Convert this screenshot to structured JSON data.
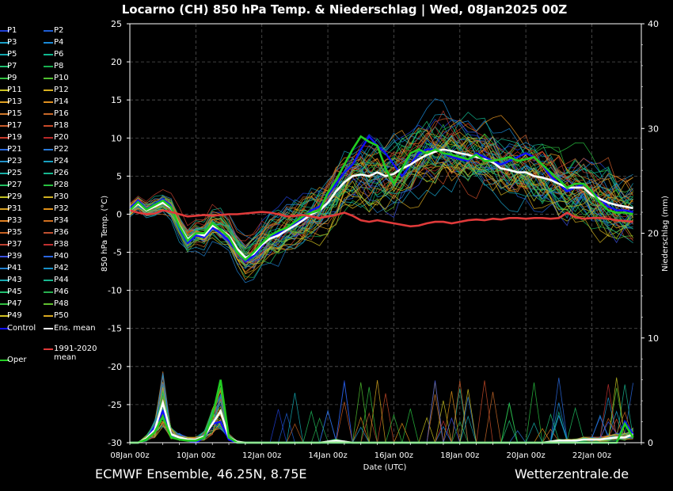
{
  "title": "Locarno  (CH)  850 hPa Temp. & Niederschlag | Wed, 08Jan2025 00Z",
  "footer_left": "ECMWF Ensemble, 46.25N, 8.75E",
  "footer_right": "Wetterzentrale.de",
  "legend": {
    "members": [
      "P1",
      "P2",
      "P3",
      "P4",
      "P5",
      "P6",
      "P7",
      "P8",
      "P9",
      "P10",
      "P11",
      "P12",
      "P13",
      "P14",
      "P15",
      "P16",
      "P17",
      "P18",
      "P19",
      "P20",
      "P21",
      "P22",
      "P23",
      "P24",
      "P25",
      "P26",
      "P27",
      "P28",
      "P29",
      "P30",
      "P31",
      "P32",
      "P33",
      "P34",
      "P35",
      "P36",
      "P37",
      "P38",
      "P39",
      "P40",
      "P41",
      "P42",
      "P43",
      "P44",
      "P45",
      "P46",
      "P47",
      "P48",
      "P49",
      "P50"
    ],
    "member_colors": [
      "#1f3fd6",
      "#1f5fd6",
      "#19a0c8",
      "#1a8ad8",
      "#12a8b0",
      "#10b890",
      "#20c070",
      "#18b050",
      "#30c040",
      "#50c030",
      "#c8c020",
      "#d8b020",
      "#e0a020",
      "#e09020",
      "#d07828",
      "#c86828",
      "#c85a28",
      "#c84a28",
      "#c83828",
      "#b82828",
      "#2a6ae0",
      "#2a7ad8",
      "#2090c8",
      "#18a0c0",
      "#18b0a8",
      "#18b890",
      "#20c060",
      "#28c040",
      "#c0c020",
      "#d0b020",
      "#d8a020",
      "#e09018",
      "#e08020",
      "#d07020",
      "#c86020",
      "#c05030",
      "#c04030",
      "#c03030",
      "#3a50e0",
      "#2a66e0",
      "#2080d0",
      "#1890c8",
      "#18a8b0",
      "#18b890",
      "#20c070",
      "#28b050",
      "#30c040",
      "#60c030",
      "#d0c020",
      "#d8a820"
    ],
    "control": "Control",
    "ens_mean": "Ens. mean",
    "clim_mean": "1991-2020\nmean",
    "oper": "Oper"
  },
  "colors": {
    "control": "#1010ff",
    "ens_mean": "#ffffff",
    "clim_mean": "#e03a3a",
    "oper": "#22cc22",
    "grid": "#555555"
  },
  "chart_data": {
    "type": "line",
    "xlabel": "Date (UTC)",
    "ylabel": "850 hPa Temp. (°C)",
    "ylabel_right": "Niederschlag (mm)",
    "x_range": [
      "2025-01-08T00:00",
      "2025-01-23T12:00"
    ],
    "x_ticks": [
      "08Jan 00z",
      "10Jan 00z",
      "12Jan 00z",
      "14Jan 00z",
      "16Jan 00z",
      "18Jan 00z",
      "20Jan 00z",
      "22Jan 00z"
    ],
    "ylim": [
      -30,
      25
    ],
    "y_ticks": [
      25,
      20,
      15,
      10,
      5,
      0,
      -5,
      -10,
      -15,
      -20,
      -25,
      -30
    ],
    "ylim_right": [
      0,
      40
    ],
    "y_ticks_right": [
      40,
      30,
      20,
      10,
      0
    ],
    "grid": true,
    "legend_placement": "left",
    "time_step_hours": 6,
    "series": [
      {
        "name": "Ens. mean",
        "kind": "temperature",
        "values": [
          0.5,
          1.4,
          0.5,
          1.0,
          1.5,
          0.8,
          -1.5,
          -3.3,
          -2.5,
          -2.8,
          -1.5,
          -2.0,
          -2.8,
          -4.5,
          -5.7,
          -5.2,
          -4.0,
          -3.2,
          -2.8,
          -2.1,
          -1.5,
          -0.8,
          0.0,
          0.5,
          1.5,
          3.0,
          4.2,
          5.0,
          5.2,
          5.0,
          5.5,
          5.0,
          5.3,
          6.0,
          6.5,
          7.2,
          7.8,
          8.2,
          8.5,
          8.3,
          8.0,
          7.8,
          7.5,
          7.2,
          6.8,
          6.0,
          5.8,
          5.5,
          5.5,
          5.0,
          4.8,
          4.5,
          4.0,
          3.5,
          3.5,
          3.5,
          2.5,
          2.0,
          1.5,
          1.2,
          1.0,
          0.8
        ]
      },
      {
        "name": "Control",
        "kind": "temperature",
        "values": [
          0.8,
          1.8,
          0.7,
          1.3,
          2.0,
          1.0,
          -1.8,
          -3.8,
          -2.8,
          -3.0,
          -1.8,
          -2.5,
          -3.5,
          -5.0,
          -6.2,
          -5.5,
          -4.2,
          -3.0,
          -2.5,
          -2.0,
          -1.2,
          -0.5,
          0.5,
          1.0,
          2.5,
          4.0,
          5.5,
          6.5,
          8.5,
          10.2,
          9.0,
          8.0,
          6.5,
          5.0,
          6.5,
          8.0,
          8.5,
          8.5,
          8.0,
          7.5,
          7.2,
          7.0,
          8.0,
          7.5,
          7.0,
          6.5,
          7.0,
          7.5,
          8.0,
          7.5,
          6.5,
          5.0,
          4.0,
          3.0,
          3.5,
          4.0,
          3.0,
          2.0,
          1.0,
          0.5,
          0.5,
          0.3
        ]
      },
      {
        "name": "Oper",
        "kind": "temperature",
        "values": [
          0.5,
          1.6,
          0.6,
          1.2,
          1.8,
          0.9,
          -1.6,
          -3.5,
          -2.5,
          -2.5,
          -1.2,
          -2.0,
          -3.0,
          -5.0,
          -6.0,
          -5.0,
          -3.8,
          -2.8,
          -2.2,
          -1.8,
          -1.0,
          -0.3,
          0.2,
          0.5,
          2.8,
          4.5,
          6.5,
          8.5,
          10.2,
          9.5,
          9.0,
          6.0,
          4.0,
          6.0,
          8.0,
          8.5,
          8.0,
          8.5,
          8.0,
          7.8,
          7.5,
          7.2,
          7.8,
          7.0,
          7.0,
          7.2,
          7.5,
          7.0,
          7.2,
          7.5,
          6.5,
          5.5,
          4.5,
          3.5,
          4.0,
          4.0,
          3.0,
          1.5,
          0.5,
          0.2,
          0.2,
          0.0
        ]
      },
      {
        "name": "1991-2020 mean",
        "kind": "temperature",
        "values": [
          0.5,
          0.2,
          0.0,
          0.1,
          0.5,
          0.3,
          0.0,
          -0.3,
          -0.2,
          -0.1,
          -0.2,
          -0.1,
          0.0,
          0.0,
          0.1,
          0.2,
          0.3,
          0.2,
          0.0,
          -0.3,
          -0.2,
          -0.1,
          -0.3,
          -0.5,
          -0.3,
          -0.1,
          0.2,
          -0.2,
          -0.8,
          -1.0,
          -0.8,
          -1.0,
          -1.2,
          -1.4,
          -1.6,
          -1.5,
          -1.2,
          -1.0,
          -1.0,
          -1.2,
          -1.0,
          -0.8,
          -0.7,
          -0.8,
          -0.6,
          -0.7,
          -0.5,
          -0.5,
          -0.6,
          -0.5,
          -0.5,
          -0.6,
          -0.5,
          0.2,
          -0.4,
          -0.6,
          -0.5,
          -0.5,
          -0.6,
          -0.8,
          -0.9,
          -1.0
        ]
      },
      {
        "name": "Control",
        "kind": "precipitation",
        "values": [
          0,
          0,
          0.3,
          1.5,
          3.0,
          0.8,
          0.5,
          0.2,
          0,
          0.5,
          1.8,
          2.0,
          0.3,
          0,
          0,
          0,
          0,
          0,
          0,
          0,
          0,
          0,
          0,
          0,
          0,
          0,
          0,
          0,
          0,
          0,
          0,
          0,
          0,
          0,
          0,
          0,
          0,
          0,
          0,
          0,
          0,
          0,
          0,
          0,
          0,
          0,
          0,
          0,
          0,
          0,
          0,
          0,
          0,
          0,
          0,
          0,
          0,
          0,
          0,
          0,
          2.0,
          0.8
        ]
      },
      {
        "name": "Ens. mean",
        "kind": "precipitation",
        "values": [
          0,
          0,
          0.4,
          1.2,
          3.8,
          0.8,
          0.5,
          0.3,
          0.3,
          0.6,
          1.8,
          3.0,
          0.5,
          0.1,
          0,
          0,
          0,
          0,
          0,
          0,
          0,
          0,
          0,
          0,
          0.1,
          0.2,
          0.1,
          0,
          0,
          0,
          0,
          0,
          0,
          0,
          0,
          0,
          0,
          0,
          0,
          0,
          0,
          0,
          0,
          0,
          0,
          0,
          0,
          0,
          0,
          0,
          0,
          0.1,
          0.2,
          0.2,
          0.2,
          0.3,
          0.3,
          0.3,
          0.4,
          0.5,
          0.5,
          0.8
        ]
      },
      {
        "name": "Oper",
        "kind": "precipitation",
        "values": [
          0,
          0,
          0.3,
          1.0,
          2.5,
          0.5,
          0.3,
          0.2,
          0.2,
          0.5,
          2.5,
          6.0,
          0.5,
          0,
          0,
          0,
          0,
          0,
          0,
          0,
          0,
          0,
          0,
          0,
          0,
          0,
          0,
          0,
          0,
          0,
          0,
          0,
          0,
          0,
          0,
          0,
          0,
          0,
          0,
          0,
          0,
          0,
          0,
          0,
          0,
          0,
          0,
          0,
          0,
          0,
          0,
          0,
          0,
          0,
          0,
          0,
          0,
          0,
          0,
          0,
          1.8,
          0.5
        ]
      }
    ]
  }
}
